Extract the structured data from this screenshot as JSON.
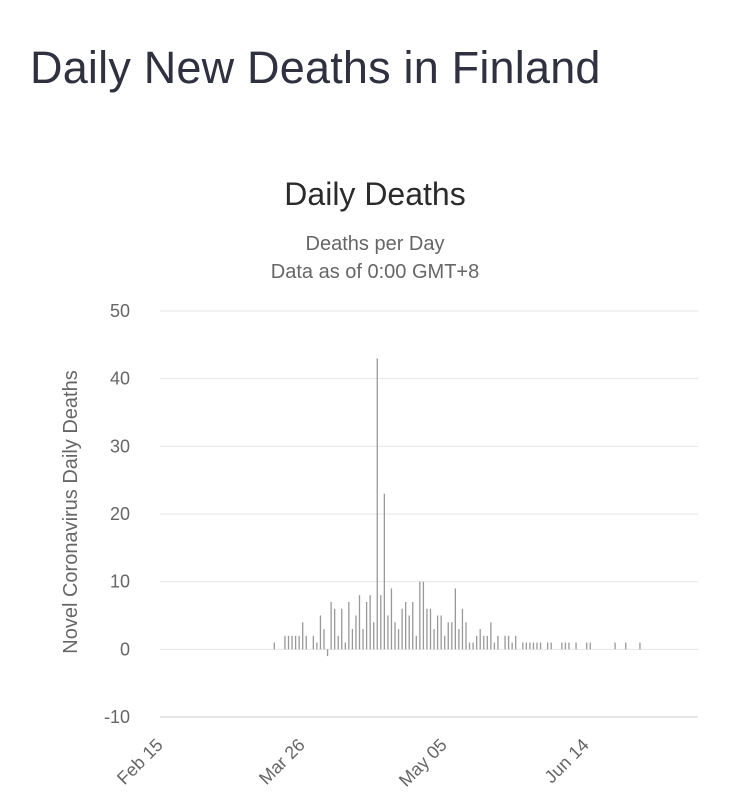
{
  "page": {
    "title": "Daily New Deaths in Finland"
  },
  "chart_data": {
    "type": "bar",
    "title": "Daily Deaths",
    "subtitle": [
      "Deaths per Day",
      "Data as of 0:00 GMT+8"
    ],
    "ylabel": "Novel Coronavirus Daily Deaths",
    "xlabel": "",
    "ylim": [
      -10,
      50
    ],
    "yticks": [
      50,
      40,
      30,
      20,
      10,
      0,
      -10
    ],
    "x_start": "Feb 15",
    "x_tick_labels": [
      {
        "label": "Feb 15",
        "day": 0
      },
      {
        "label": "Mar 26",
        "day": 40
      },
      {
        "label": "May 05",
        "day": 80
      },
      {
        "label": "Jun 14",
        "day": 120
      }
    ],
    "grid": true,
    "bar_color": "#999999",
    "days": [
      35,
      38,
      39,
      40,
      41,
      42,
      43,
      44,
      46,
      47,
      48,
      49,
      50,
      51,
      52,
      53,
      54,
      55,
      56,
      57,
      58,
      59,
      60,
      61,
      62,
      63,
      64,
      65,
      66,
      67,
      68,
      69,
      70,
      71,
      72,
      73,
      74,
      75,
      76,
      77,
      78,
      79,
      80,
      81,
      82,
      83,
      84,
      85,
      86,
      87,
      88,
      89,
      90,
      91,
      92,
      93,
      94,
      95,
      96,
      97,
      98,
      100,
      101,
      102,
      103,
      105,
      106,
      107,
      108,
      109,
      110,
      112,
      113,
      116,
      117,
      118,
      120,
      123,
      124,
      131,
      134,
      138
    ],
    "values": [
      1,
      2,
      2,
      2,
      2,
      2,
      4,
      2,
      2,
      1,
      5,
      3,
      -1,
      7,
      6,
      2,
      6,
      1,
      7,
      3,
      5,
      8,
      3,
      7,
      8,
      4,
      43,
      8,
      23,
      5,
      9,
      4,
      3,
      6,
      7,
      5,
      7,
      2,
      10,
      10,
      6,
      6,
      3,
      5,
      5,
      2,
      4,
      4,
      9,
      3,
      6,
      4,
      1,
      1,
      2,
      3,
      2,
      2,
      4,
      1,
      2,
      2,
      2,
      1,
      2,
      1,
      1,
      1,
      1,
      1,
      1,
      1,
      1,
      1,
      1,
      1,
      1,
      1,
      1,
      1,
      1,
      1
    ]
  }
}
